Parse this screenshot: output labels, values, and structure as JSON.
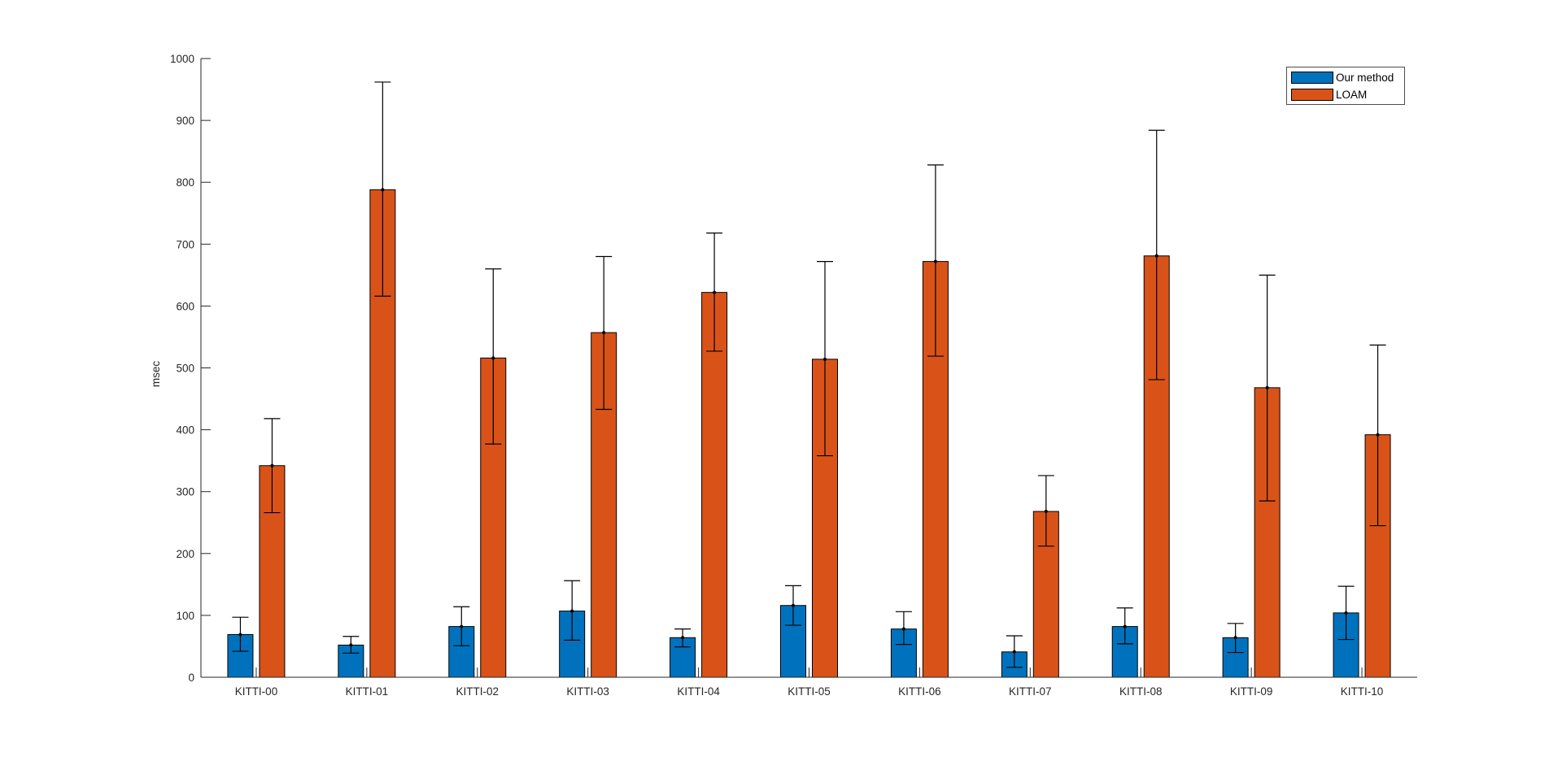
{
  "figure": {
    "background": "#ffffff"
  },
  "axis": {
    "color": "#262626",
    "text_color": "#262626"
  },
  "legend": {
    "border_color": "#4d4d4d",
    "items": [
      {
        "label": "Our method",
        "color": "#0072BD"
      },
      {
        "label": "LOAM",
        "color": "#D95319"
      }
    ]
  },
  "chart_data": {
    "type": "bar",
    "title": "",
    "xlabel": "",
    "ylabel": "msec",
    "ylim": [
      0,
      1000
    ],
    "yticks": [
      0,
      100,
      200,
      300,
      400,
      500,
      600,
      700,
      800,
      900,
      1000
    ],
    "grid": false,
    "legend_position": "top-right",
    "error_bars": true,
    "bar_edge_color": "#000000",
    "error_bar_color": "#000000",
    "categories": [
      "KITTI-00",
      "KITTI-01",
      "KITTI-02",
      "KITTI-03",
      "KITTI-04",
      "KITTI-05",
      "KITTI-06",
      "KITTI-07",
      "KITTI-08",
      "KITTI-09",
      "KITTI-10"
    ],
    "series": [
      {
        "name": "Our method",
        "color": "#0072BD",
        "values": [
          69,
          52,
          82,
          107,
          64,
          116,
          78,
          41,
          82,
          64,
          104
        ],
        "err_low": [
          42,
          39,
          51,
          60,
          49,
          84,
          53,
          16,
          54,
          40,
          61
        ],
        "err_high": [
          97,
          66,
          114,
          156,
          78,
          148,
          106,
          67,
          112,
          87,
          147
        ]
      },
      {
        "name": "LOAM",
        "color": "#D95319",
        "values": [
          342,
          788,
          516,
          557,
          622,
          514,
          672,
          268,
          681,
          468,
          392
        ],
        "err_low": [
          266,
          616,
          377,
          433,
          527,
          358,
          519,
          212,
          481,
          285,
          245
        ],
        "err_high": [
          418,
          962,
          660,
          680,
          718,
          672,
          828,
          326,
          884,
          650,
          537
        ]
      }
    ]
  }
}
